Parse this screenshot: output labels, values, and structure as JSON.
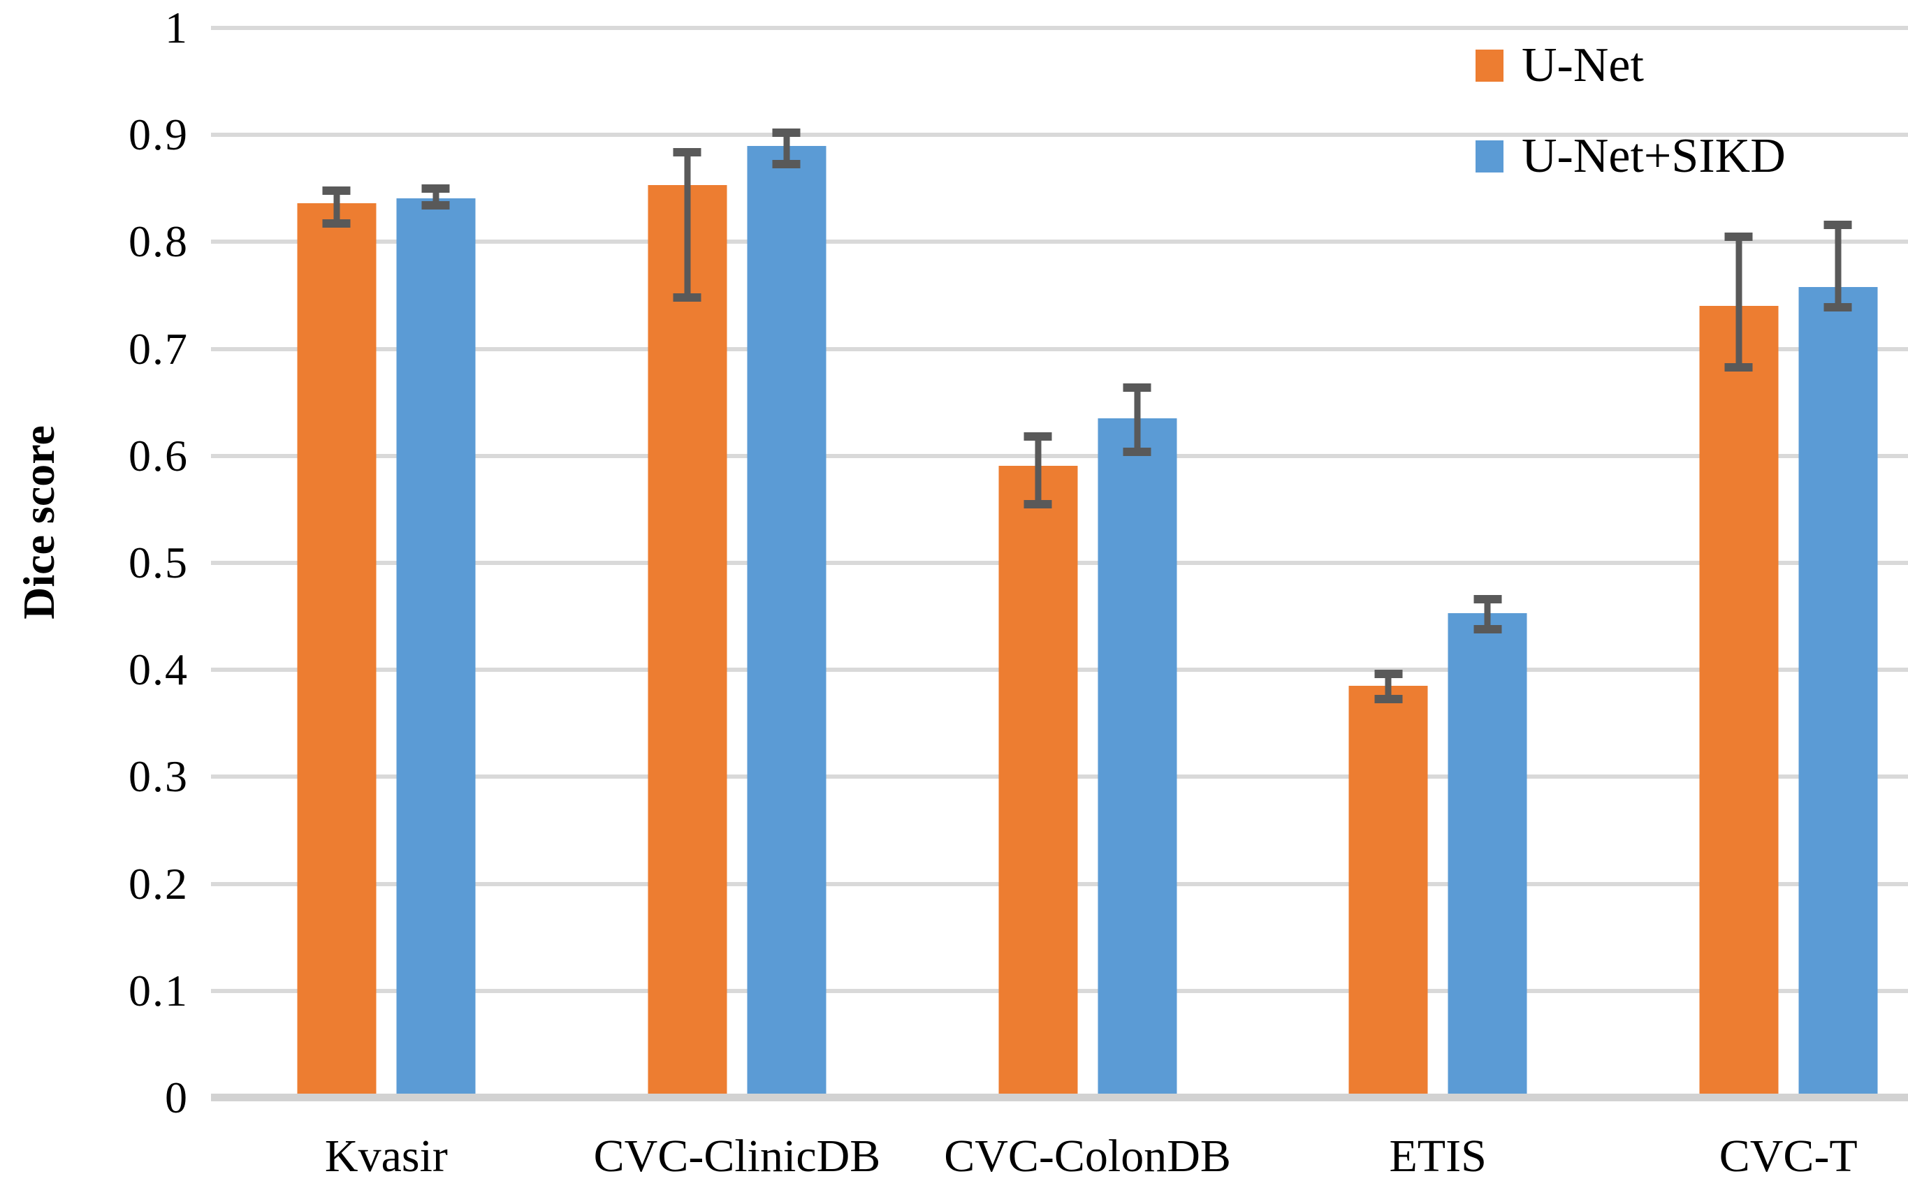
{
  "chart_data": {
    "type": "bar",
    "title": "",
    "xlabel": "",
    "ylabel": "Dice score",
    "ylim": [
      0,
      1
    ],
    "grid": "horizontal",
    "legend_position": "top-right",
    "yticks": [
      0,
      0.1,
      0.2,
      0.3,
      0.4,
      0.5,
      0.6,
      0.7,
      0.8,
      0.9,
      1
    ],
    "ytick_labels": [
      "0",
      "0.1",
      "0.2",
      "0.3",
      "0.4",
      "0.5",
      "0.6",
      "0.7",
      "0.8",
      "0.9",
      "1"
    ],
    "categories": [
      "Kvasir",
      "CVC-ClinicDB",
      "CVC-ColonDB",
      "ETIS",
      "CVC-T"
    ],
    "group_centers_pct": [
      10.33,
      31.0,
      51.65,
      72.3,
      92.95
    ],
    "series": [
      {
        "name": "U-Net",
        "color": "#ED7D31",
        "values": [
          0.836,
          0.853,
          0.591,
          0.385,
          0.74
        ],
        "err_low": [
          0.817,
          0.748,
          0.555,
          0.373,
          0.683
        ],
        "err_high": [
          0.848,
          0.884,
          0.618,
          0.396,
          0.805
        ]
      },
      {
        "name": "U-Net+SIKD",
        "color": "#5B9BD5",
        "values": [
          0.841,
          0.89,
          0.635,
          0.453,
          0.758
        ],
        "err_low": [
          0.834,
          0.873,
          0.604,
          0.438,
          0.739
        ],
        "err_high": [
          0.85,
          0.902,
          0.664,
          0.466,
          0.816
        ]
      }
    ],
    "error_bar_color": "#595959",
    "gridline_color": "#D9D9D9",
    "axis_line_color": "#D2D2D2"
  }
}
